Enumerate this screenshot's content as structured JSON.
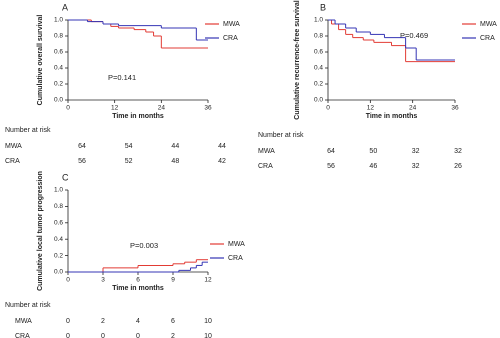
{
  "chart_data": [
    {
      "type": "step",
      "label": "A",
      "ylabel": "Cumulative overall survival",
      "xlabel": "Time in months",
      "annotation": "P=0.141",
      "xlim": [
        0,
        36
      ],
      "xticks": [
        0,
        12,
        24,
        36
      ],
      "ylim": [
        0,
        1
      ],
      "yticks": [
        {
          "value": 0,
          "label": "0.0"
        },
        {
          "value": 0.2,
          "label": "0.2"
        },
        {
          "value": 0.4,
          "label": "0.4"
        },
        {
          "value": 0.6,
          "label": "0.6"
        },
        {
          "value": 0.8,
          "label": "0.8"
        },
        {
          "value": 1,
          "label": "1.0"
        }
      ],
      "series": [
        {
          "name": "MWA",
          "color": "#e23b34",
          "x": [
            0,
            6,
            9,
            11,
            13,
            17,
            20,
            22,
            24
          ],
          "values": [
            1,
            0.98,
            0.95,
            0.92,
            0.9,
            0.88,
            0.85,
            0.8,
            0.65
          ]
        },
        {
          "name": "CRA",
          "color": "#3434b4",
          "x": [
            0,
            5,
            9,
            13,
            24,
            33
          ],
          "values": [
            1,
            0.98,
            0.95,
            0.93,
            0.9,
            0.75
          ]
        }
      ],
      "risk_table": {
        "title": "Number at risk",
        "rows": [
          {
            "name": "MWA",
            "values": [
              "64",
              "54",
              "44",
              "44"
            ]
          },
          {
            "name": "CRA",
            "values": [
              "56",
              "52",
              "48",
              "42"
            ]
          }
        ]
      }
    },
    {
      "type": "step",
      "label": "B",
      "ylabel": "Cumulative recurrence-free survival",
      "xlabel": "Time in months",
      "annotation": "P=0.469",
      "xlim": [
        0,
        36
      ],
      "xticks": [
        0,
        12,
        24,
        36
      ],
      "ylim": [
        0,
        1
      ],
      "yticks": [
        {
          "value": 0,
          "label": "0.0"
        },
        {
          "value": 0.2,
          "label": "0.2"
        },
        {
          "value": 0.4,
          "label": "0.4"
        },
        {
          "value": 0.6,
          "label": "0.6"
        },
        {
          "value": 0.8,
          "label": "0.8"
        },
        {
          "value": 1,
          "label": "1.0"
        }
      ],
      "series": [
        {
          "name": "MWA",
          "color": "#e23b34",
          "x": [
            0,
            1,
            3,
            5,
            7,
            10,
            13,
            18,
            22
          ],
          "values": [
            1,
            0.95,
            0.88,
            0.82,
            0.78,
            0.75,
            0.72,
            0.68,
            0.48
          ]
        },
        {
          "name": "CRA",
          "color": "#3434b4",
          "x": [
            0,
            2,
            5,
            8,
            12,
            16,
            22,
            25
          ],
          "values": [
            1,
            0.95,
            0.9,
            0.85,
            0.82,
            0.78,
            0.65,
            0.5
          ]
        }
      ],
      "risk_table": {
        "title": "Number at risk",
        "rows": [
          {
            "name": "MWA",
            "values": [
              "64",
              "50",
              "32",
              "32"
            ]
          },
          {
            "name": "CRA",
            "values": [
              "56",
              "46",
              "32",
              "26"
            ]
          }
        ]
      }
    },
    {
      "type": "step",
      "label": "C",
      "ylabel": "Cumulative local tumor progression",
      "xlabel": "Time in months",
      "annotation": "P=0.003",
      "xlim": [
        0,
        12
      ],
      "xticks": [
        0,
        3,
        6,
        9,
        12
      ],
      "ylim": [
        0,
        1
      ],
      "yticks": [
        {
          "value": 0,
          "label": "0.0"
        },
        {
          "value": 0.2,
          "label": "0.2"
        },
        {
          "value": 0.4,
          "label": "0.4"
        },
        {
          "value": 0.6,
          "label": "0.6"
        },
        {
          "value": 0.8,
          "label": "0.8"
        },
        {
          "value": 1,
          "label": "1.0"
        }
      ],
      "series": [
        {
          "name": "MWA",
          "color": "#e23b34",
          "x": [
            0,
            3,
            6,
            9,
            10,
            11
          ],
          "values": [
            0,
            0.05,
            0.08,
            0.1,
            0.12,
            0.15
          ]
        },
        {
          "name": "CRA",
          "color": "#3434b4",
          "x": [
            0,
            9.5,
            10.5,
            11,
            11.5
          ],
          "values": [
            0,
            0.02,
            0.05,
            0.08,
            0.12
          ]
        }
      ],
      "risk_table": {
        "title": "Number at risk",
        "rows": [
          {
            "name": "MWA",
            "values": [
              "0",
              "2",
              "4",
              "6",
              "10"
            ]
          },
          {
            "name": "CRA",
            "values": [
              "0",
              "0",
              "0",
              "2",
              "10"
            ]
          }
        ]
      }
    }
  ]
}
